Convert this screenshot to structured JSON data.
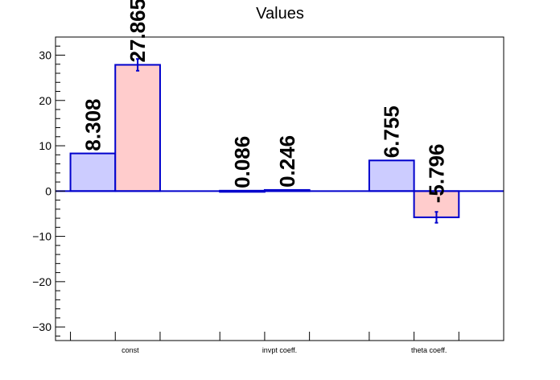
{
  "chart_data": {
    "type": "bar",
    "title": "Values",
    "xlabel": "",
    "ylabel": "",
    "categories": [
      "const",
      "invpt coeff.",
      "theta coeff."
    ],
    "ylim": [
      -33,
      34
    ],
    "yticks": [
      -30,
      -20,
      -10,
      0,
      10,
      20,
      30
    ],
    "ytick_labels": [
      "−30",
      "−20",
      "−10",
      "0",
      "10",
      "20",
      "30"
    ],
    "grid": false,
    "legend": "none",
    "series": [
      {
        "values": [
          8.308,
          0.086,
          6.755
        ],
        "labels": [
          "8.308",
          "0.086",
          "6.755"
        ],
        "errors": [
          0,
          0,
          0
        ],
        "color": "#ccccff"
      },
      {
        "values": [
          27.865,
          0.246,
          -5.796
        ],
        "labels": [
          "27.865",
          "0.246",
          "-5.796"
        ],
        "errors": [
          1.3,
          0,
          1.2
        ],
        "color": "#ffcccc"
      }
    ],
    "colors": {
      "bar_outline": "#0000cc",
      "error_bar": "#0000cc",
      "zero_line": "#0000cc",
      "axis": "#000000"
    }
  }
}
